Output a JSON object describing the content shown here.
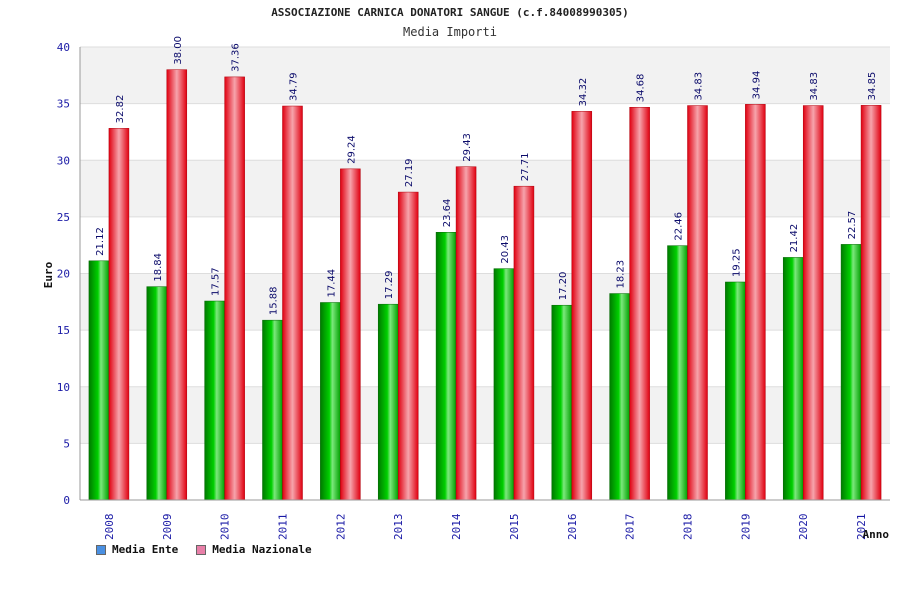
{
  "chart_data": {
    "type": "bar",
    "title": "ASSOCIAZIONE CARNICA DONATORI SANGUE (c.f.84008990305)",
    "subtitle": "Media Importi",
    "xlabel": "Anno",
    "ylabel": "Euro",
    "ylim": [
      0,
      40
    ],
    "yticks": [
      0,
      5,
      10,
      15,
      20,
      25,
      30,
      35,
      40
    ],
    "grid": true,
    "legend_position": "bottom-left",
    "categories": [
      "2008",
      "2009",
      "2010",
      "2011",
      "2012",
      "2013",
      "2014",
      "2015",
      "2016",
      "2017",
      "2018",
      "2019",
      "2020",
      "2021"
    ],
    "series": [
      {
        "name": "Media Ente",
        "color": "#00b000",
        "legend_color": "#4a90e2",
        "values": [
          21.12,
          18.84,
          17.57,
          15.88,
          17.44,
          17.29,
          23.64,
          20.43,
          17.2,
          18.23,
          22.46,
          19.25,
          21.42,
          22.57
        ],
        "labels": [
          "21.12",
          "18.84",
          "17.57",
          "15.88",
          "17.44",
          "17.29",
          "23.64",
          "20.43",
          "17.20",
          "18.23",
          "22.46",
          "19.25",
          "21.42",
          "22.57"
        ]
      },
      {
        "name": "Media Nazionale",
        "color": "#e8101e",
        "legend_color": "#e87fa8",
        "values": [
          32.82,
          38.0,
          37.36,
          34.79,
          29.24,
          27.19,
          29.43,
          27.71,
          34.32,
          34.68,
          34.83,
          34.94,
          34.83,
          34.85
        ],
        "labels": [
          "32.82",
          "38.00",
          "37.36",
          "34.79",
          "29.24",
          "27.19",
          "29.43",
          "27.71",
          "34.32",
          "34.68",
          "34.83",
          "34.94",
          "34.83",
          "34.85"
        ]
      }
    ]
  }
}
